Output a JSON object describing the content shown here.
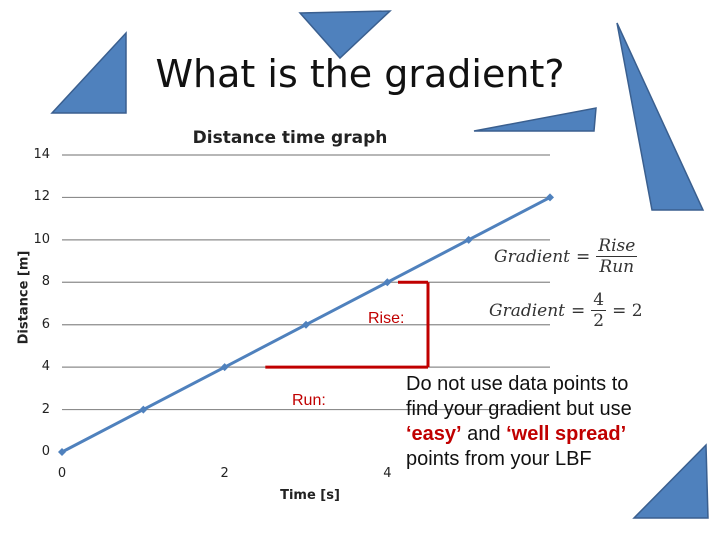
{
  "slide": {
    "title": "What is the gradient?",
    "note": {
      "line1": "Do not use data points to",
      "line2": "find your gradient but use",
      "easy": "‘easy’",
      "and": " and ",
      "well_spread": "‘well spread’",
      "line4": "points from your LBF"
    },
    "equations": {
      "gradient_word": "Gradient",
      "equals": "=",
      "rise": "Rise",
      "run": "Run",
      "num": "4",
      "den": "2",
      "result": "= 2"
    },
    "colors": {
      "triangle": "#4f81bd",
      "triangle_edge": "#3a5f8f",
      "line": "#4f81bd",
      "marker": "#4f81bd",
      "annotation": "#c00000",
      "gridline": "#8c8c8c"
    }
  },
  "chart_data": {
    "type": "line",
    "title": "Distance time graph",
    "xlabel": "Time [s]",
    "ylabel": "Distance [m]",
    "xlim": [
      0,
      6
    ],
    "ylim": [
      0,
      14
    ],
    "xticks": [
      0,
      2,
      4
    ],
    "yticks": [
      0,
      2,
      4,
      6,
      8,
      10,
      12,
      14
    ],
    "grid": "horizontal",
    "series": [
      {
        "x": [
          0,
          1,
          2,
          3,
          4,
          5,
          6
        ],
        "y": [
          0,
          2,
          4,
          6,
          8,
          10,
          12
        ]
      }
    ],
    "annotations": {
      "rise_label": "Rise:",
      "run_label": "Run:",
      "run_from": [
        2.5,
        4
      ],
      "run_to": [
        4.5,
        4
      ],
      "rise_from": [
        4.5,
        4
      ],
      "rise_to": [
        4.5,
        8
      ]
    }
  }
}
